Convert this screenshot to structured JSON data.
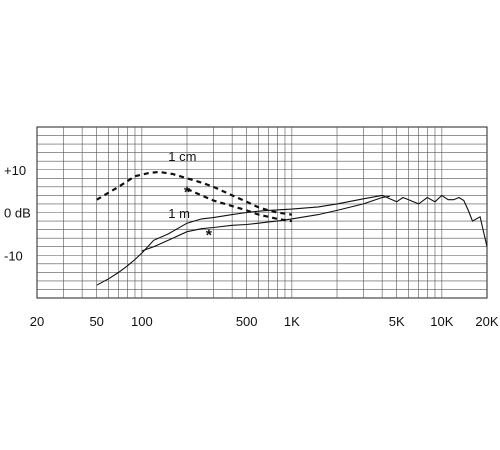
{
  "chart_data": {
    "type": "line",
    "x_scale": "log",
    "xlim": [
      20,
      20000
    ],
    "ylim": [
      -20,
      20
    ],
    "grid": true,
    "x_ticks": [
      {
        "value": 20,
        "label": "20"
      },
      {
        "value": 50,
        "label": "50"
      },
      {
        "value": 100,
        "label": "100"
      },
      {
        "value": 500,
        "label": "500"
      },
      {
        "value": 1000,
        "label": "1K"
      },
      {
        "value": 5000,
        "label": "5K"
      },
      {
        "value": 10000,
        "label": "10K"
      },
      {
        "value": 20000,
        "label": "20K"
      }
    ],
    "y_ticks": [
      {
        "value": 10,
        "label": "+10"
      },
      {
        "value": 0,
        "label": "0 dB"
      },
      {
        "value": -10,
        "label": "-10"
      }
    ],
    "series": [
      {
        "name": "1 cm",
        "style": "dashed",
        "x": [
          50,
          70,
          90,
          110,
          130,
          160,
          200,
          250,
          300,
          400,
          500,
          600,
          700,
          800,
          1000
        ],
        "y": [
          3,
          6,
          8.5,
          9.2,
          9.5,
          9,
          8,
          7,
          6,
          4,
          2.5,
          1.2,
          0.5,
          0,
          -0.5
        ]
      },
      {
        "name": "",
        "style": "dashed",
        "x": [
          200,
          250,
          300,
          400,
          500,
          600,
          700,
          800,
          1000
        ],
        "y": [
          5.5,
          4,
          2.8,
          1.5,
          0.5,
          -0.5,
          -1,
          -1.5,
          -2
        ]
      },
      {
        "name": "1 m",
        "style": "solid",
        "x": [
          50,
          60,
          70,
          80,
          90,
          100,
          120,
          150,
          200,
          250,
          300,
          400,
          500,
          600,
          700,
          800,
          1000,
          1500,
          2000,
          3000,
          4000,
          4500,
          5000,
          5500,
          6000,
          7000,
          8000,
          9000,
          10000,
          11000,
          12000,
          13000,
          14000,
          15000,
          16000,
          18000,
          20000
        ],
        "y": [
          -17,
          -15.5,
          -14,
          -12.5,
          -11,
          -9.5,
          -6.5,
          -5,
          -2.5,
          -1.5,
          -1.2,
          -0.5,
          0,
          0.3,
          0.5,
          0.6,
          0.8,
          1.3,
          2,
          3.2,
          4,
          3.2,
          2.5,
          3.5,
          3,
          2,
          3.5,
          2.5,
          4,
          3,
          3,
          3.5,
          2.8,
          0.5,
          -2,
          -1,
          -8
        ]
      },
      {
        "name": "",
        "style": "solid",
        "x": [
          100,
          120,
          150,
          200,
          250,
          300,
          400,
          500,
          600,
          700,
          800,
          1000,
          1500,
          2000,
          3000,
          4000,
          4500
        ],
        "y": [
          -9,
          -8,
          -6.5,
          -4.5,
          -3.8,
          -3.5,
          -3,
          -2.8,
          -2.5,
          -2.2,
          -2,
          -1.5,
          -0.5,
          0.5,
          2,
          3.5,
          3.8
        ]
      }
    ],
    "series_labels": [
      {
        "text": "1 cm",
        "x": 150,
        "y": 12
      },
      {
        "text": "1 m",
        "x": 150,
        "y": -1.3
      }
    ],
    "annotations": [
      {
        "text": "*",
        "x": 200,
        "y": 3.5
      },
      {
        "text": "*",
        "x": 280,
        "y": -6.5
      }
    ]
  }
}
